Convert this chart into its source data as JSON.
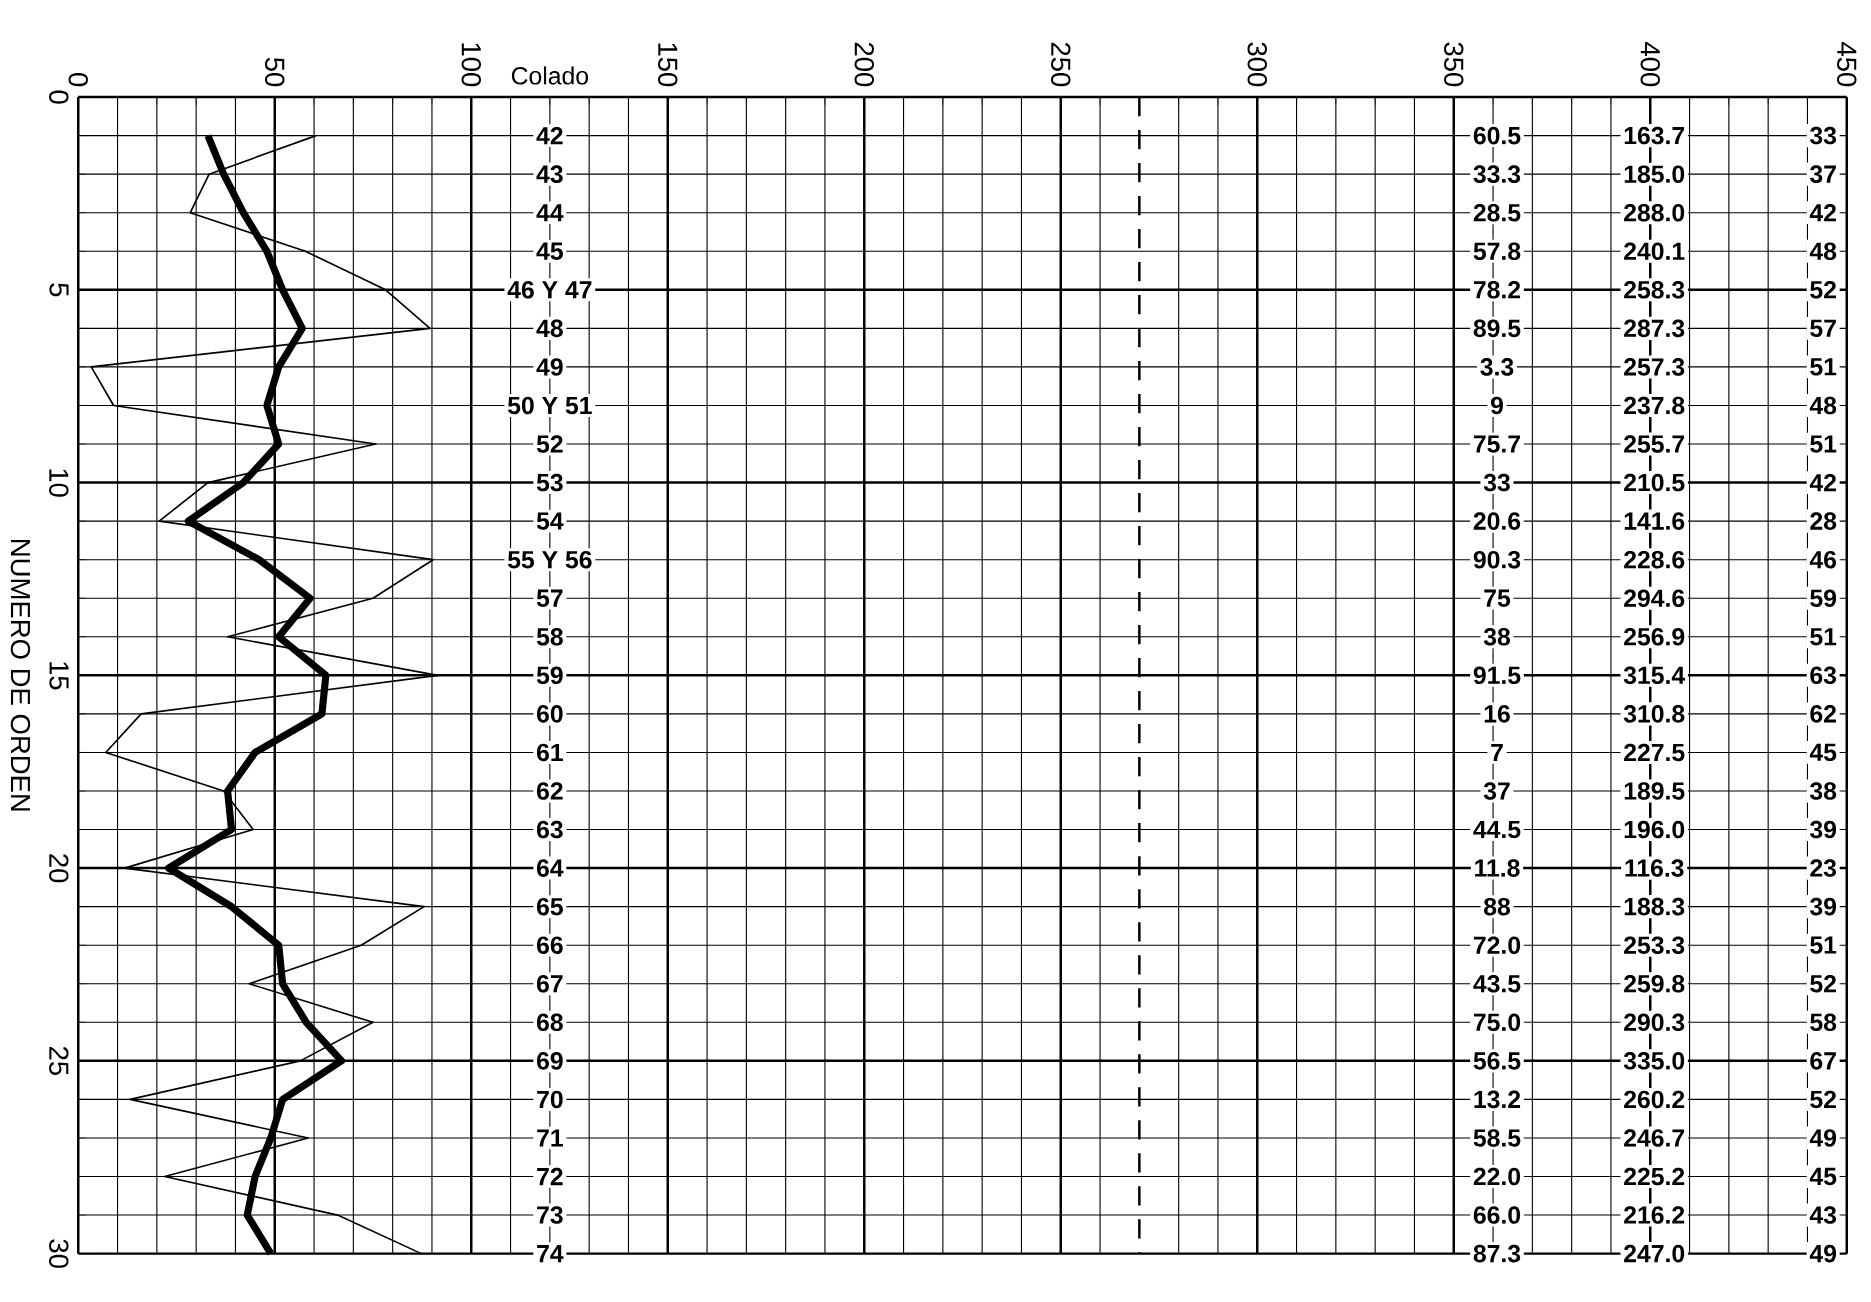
{
  "chart_data": {
    "type": "line",
    "orientation": "horizontal",
    "ylabel": "NUMERO DE ORDEN",
    "xlim": [
      0,
      450
    ],
    "xticks": [
      0,
      50,
      100,
      150,
      200,
      250,
      300,
      350,
      400,
      450
    ],
    "ylim": [
      30,
      0
    ],
    "yticks": [
      0,
      5,
      10,
      15,
      20,
      25,
      30
    ],
    "grid": true,
    "marker": "none",
    "line_style": "solid",
    "ref_lines": [
      {
        "axis": "x",
        "value": 270,
        "line_style": "dashed"
      }
    ],
    "annotations": [
      "Colado",
      "42",
      "43",
      "44",
      "45",
      "46 Y 47",
      "48",
      "49",
      "50 Y 51",
      "52",
      "53",
      "54",
      "55 Y 56",
      "57",
      "58",
      "59",
      "60",
      "61",
      "62",
      "63",
      "64",
      "65",
      "66",
      "67",
      "68",
      "69",
      "70",
      "71",
      "72",
      "73",
      "74",
      "60.5",
      "33.3",
      "28.5",
      "57.8",
      "78.2",
      "89.5",
      "3.3",
      "9",
      "75.7",
      "33",
      "20.6",
      "90.3",
      "75",
      "38",
      "91.5",
      "16",
      "7",
      "37",
      "44.5",
      "11.8",
      "88",
      "72.0",
      "43.5",
      "75.0",
      "56.5",
      "13.2",
      "58.5",
      "22.0",
      "66.0",
      "87.3",
      "163.7",
      "185.0",
      "288.0",
      "240.1",
      "258.3",
      "287.3",
      "257.3",
      "237.8",
      "255.7",
      "210.5",
      "141.6",
      "228.6",
      "294.6",
      "256.9",
      "315.4",
      "310.8",
      "227.5",
      "189.5",
      "196.0",
      "116.3",
      "188.3",
      "253.3",
      "259.8",
      "290.3",
      "335.0",
      "260.2",
      "246.7",
      "225.2",
      "216.2",
      "247.0",
      "33",
      "37",
      "42",
      "48",
      "52",
      "57",
      "51",
      "48",
      "51",
      "42",
      "28",
      "46",
      "59",
      "51",
      "63",
      "62",
      "45",
      "38",
      "39",
      "23",
      "39",
      "51",
      "52",
      "58",
      "67",
      "52",
      "49",
      "45",
      "43",
      "49"
    ],
    "series": [
      {
        "color": "#000000",
        "x": [
          1,
          2,
          3,
          4,
          5,
          6,
          7,
          8,
          9,
          10,
          11,
          12,
          13,
          14,
          15,
          16,
          17,
          18,
          19,
          20,
          21,
          22,
          23,
          24,
          25,
          26,
          27,
          28,
          29,
          30
        ],
        "values": [
          60.5,
          33.3,
          28.5,
          57.8,
          78.2,
          89.5,
          3.3,
          9,
          75.7,
          33,
          20.6,
          90.3,
          75,
          38,
          91.5,
          16,
          7,
          37,
          44.5,
          11.8,
          88,
          72.0,
          43.5,
          75.0,
          56.5,
          13.2,
          58.5,
          22.0,
          66.0,
          87.3
        ]
      },
      {
        "color": "#000000",
        "x": [
          1,
          2,
          3,
          4,
          5,
          6,
          7,
          8,
          9,
          10,
          11,
          12,
          13,
          14,
          15,
          16,
          17,
          18,
          19,
          20,
          21,
          22,
          23,
          24,
          25,
          26,
          27,
          28,
          29,
          30
        ],
        "values": [
          33,
          37,
          42,
          48,
          52,
          57,
          51,
          48,
          51,
          42,
          28,
          46,
          59,
          51,
          63,
          62,
          45,
          38,
          39,
          23,
          39,
          51,
          52,
          58,
          67,
          52,
          49,
          45,
          43,
          49
        ]
      }
    ]
  }
}
